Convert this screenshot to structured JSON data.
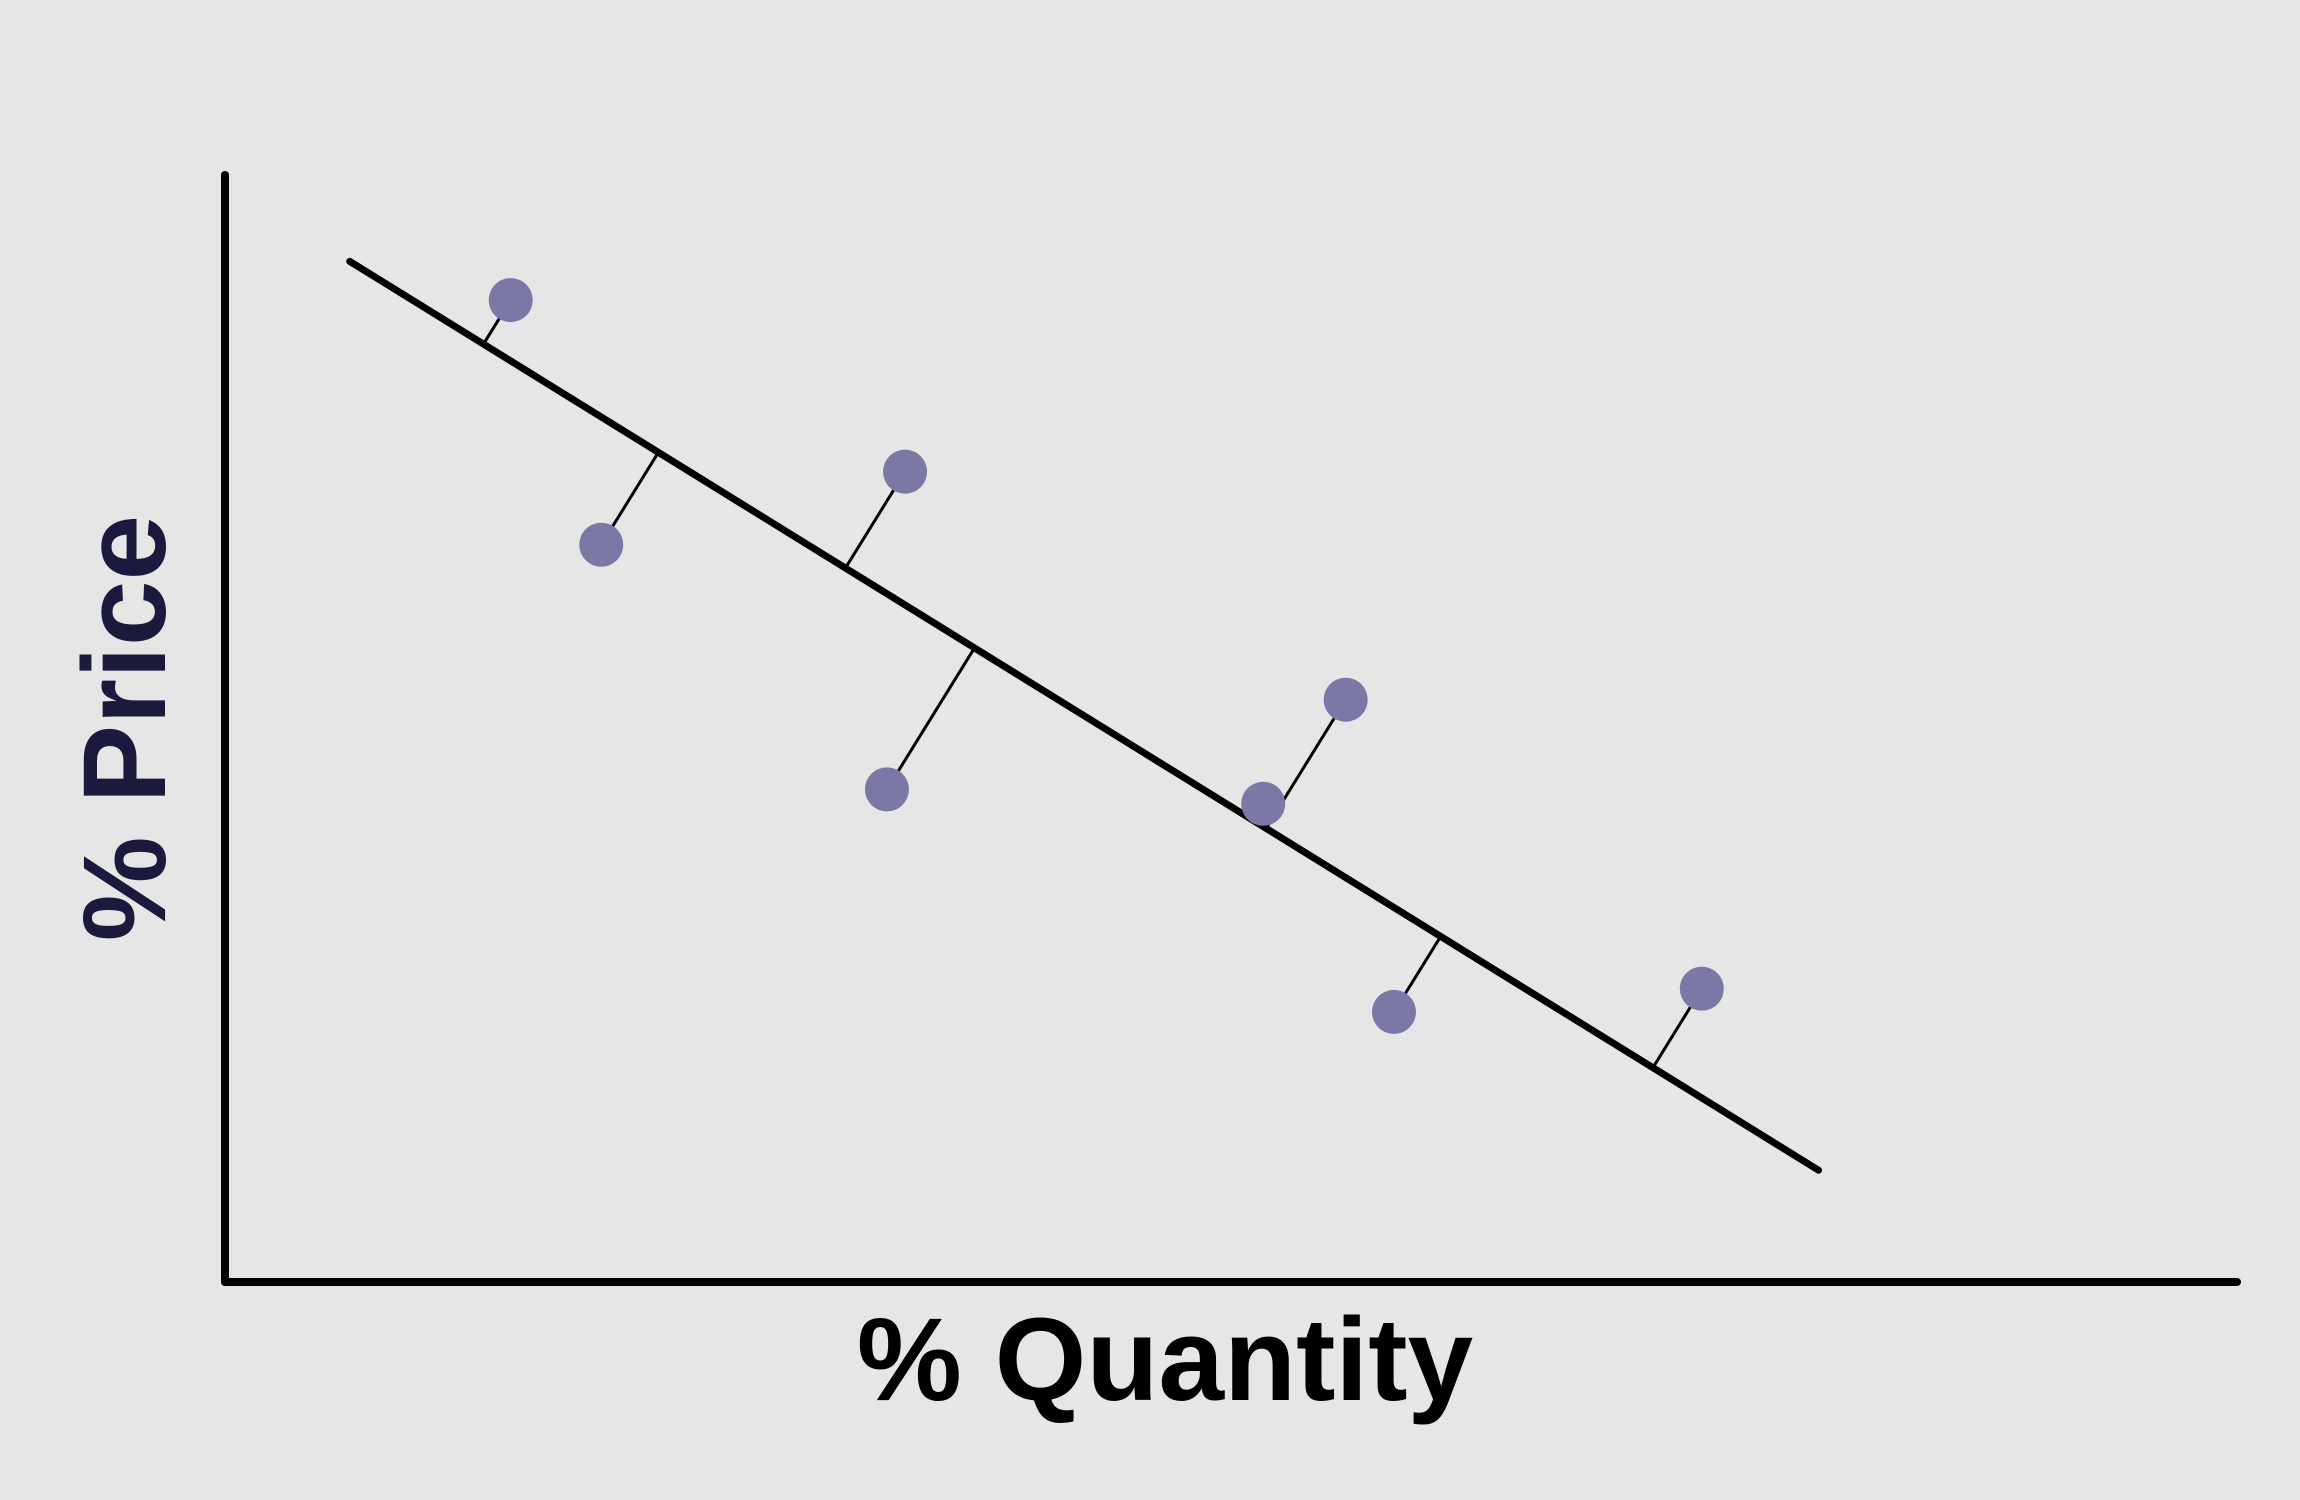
{
  "chart_data": {
    "type": "scatter",
    "title": "",
    "xlabel": "% Quantity",
    "ylabel": "% Price",
    "xlim": [
      0,
      100
    ],
    "ylim": [
      0,
      100
    ],
    "grid": false,
    "legend": "none",
    "colors": {
      "background": "#e6e6e6",
      "point": "#7b78a6",
      "line": "#000000",
      "xlabel": "#000000",
      "ylabel": "#1c1a3c"
    },
    "points": [
      {
        "x": 14.2,
        "y": 88.7
      },
      {
        "x": 18.7,
        "y": 66.6
      },
      {
        "x": 33.8,
        "y": 73.2
      },
      {
        "x": 32.9,
        "y": 44.5
      },
      {
        "x": 51.6,
        "y": 43.2
      },
      {
        "x": 55.7,
        "y": 52.6
      },
      {
        "x": 58.1,
        "y": 24.4
      },
      {
        "x": 73.4,
        "y": 26.5
      }
    ],
    "trend_line": {
      "x": [
        6.2,
        79.2
      ],
      "y": [
        92.2,
        10.1
      ]
    }
  }
}
